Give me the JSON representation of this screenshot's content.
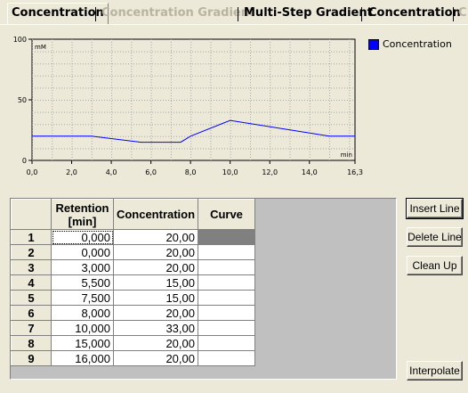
{
  "tabs": [
    {
      "label": "Concentration",
      "state": "normal"
    },
    {
      "label": "Concentration Gradient",
      "state": "disabled"
    },
    {
      "label": "Multi-Step Gradient",
      "state": "normal"
    },
    {
      "label": "Concentration",
      "state": "normal"
    },
    {
      "label": "C",
      "state": "disabled"
    }
  ],
  "chart_data": {
    "type": "line",
    "y_unit": "mM",
    "x_unit": "min",
    "ylim": [
      0,
      100
    ],
    "xlim": [
      0.0,
      16.3
    ],
    "y_ticks": [
      "100",
      "50",
      "0"
    ],
    "x_ticks": [
      "0,0",
      "2,0",
      "4,0",
      "6,0",
      "8,0",
      "10,0",
      "12,0",
      "14,0",
      "16,3"
    ],
    "grid": true,
    "legend_position": "top-right",
    "series": [
      {
        "name": "Concentration",
        "color": "#0000ff",
        "x": [
          0.0,
          0.0,
          3.0,
          5.5,
          7.5,
          8.0,
          10.0,
          15.0,
          16.0,
          16.3
        ],
        "y": [
          20,
          20,
          20,
          15,
          15,
          20,
          33,
          20,
          20,
          20
        ]
      }
    ]
  },
  "legend": {
    "label": "Concentration",
    "color": "#0000ff"
  },
  "table": {
    "headers": {
      "retention": "Retention\n[min]",
      "concentration": "Concentration",
      "curve": "Curve"
    },
    "rows": [
      {
        "n": "1",
        "retention": "0,000",
        "concentration": "20,00",
        "curve": ""
      },
      {
        "n": "2",
        "retention": "0,000",
        "concentration": "20,00",
        "curve": ""
      },
      {
        "n": "3",
        "retention": "3,000",
        "concentration": "20,00",
        "curve": ""
      },
      {
        "n": "4",
        "retention": "5,500",
        "concentration": "15,00",
        "curve": ""
      },
      {
        "n": "5",
        "retention": "7,500",
        "concentration": "15,00",
        "curve": ""
      },
      {
        "n": "6",
        "retention": "8,000",
        "concentration": "20,00",
        "curve": ""
      },
      {
        "n": "7",
        "retention": "10,000",
        "concentration": "33,00",
        "curve": ""
      },
      {
        "n": "8",
        "retention": "15,000",
        "concentration": "20,00",
        "curve": ""
      },
      {
        "n": "9",
        "retention": "16,000",
        "concentration": "20,00",
        "curve": ""
      }
    ]
  },
  "buttons": {
    "insert": "Insert Line",
    "delete": "Delete Line",
    "cleanup": "Clean Up",
    "interpolate": "Interpolate"
  }
}
